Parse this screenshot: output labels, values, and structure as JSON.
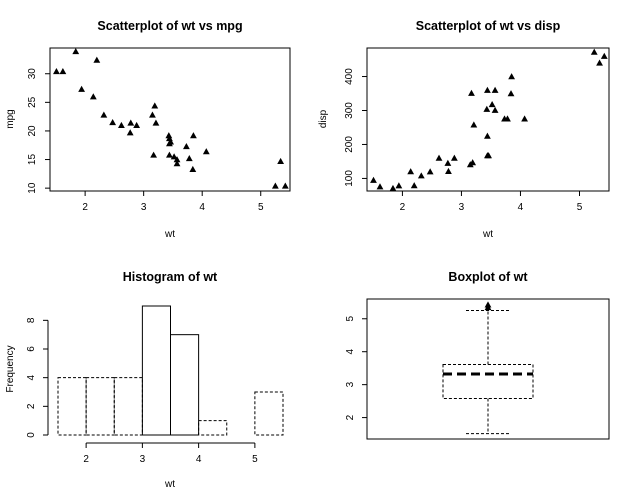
{
  "chart_data": [
    {
      "type": "scatter",
      "title": "Scatterplot of wt vs mpg",
      "xlabel": "wt",
      "ylabel": "mpg",
      "xlim": [
        1.4,
        5.5
      ],
      "ylim": [
        9.5,
        34.5
      ],
      "xticks": [
        2,
        3,
        4,
        5
      ],
      "yticks": [
        10,
        15,
        20,
        25,
        30
      ],
      "marker": "filled-triangle",
      "points": [
        [
          1.51,
          30.4
        ],
        [
          1.62,
          30.4
        ],
        [
          1.84,
          33.9
        ],
        [
          1.94,
          27.3
        ],
        [
          2.14,
          26.0
        ],
        [
          2.2,
          32.4
        ],
        [
          2.32,
          22.8
        ],
        [
          2.47,
          21.5
        ],
        [
          2.62,
          21.0
        ],
        [
          2.77,
          19.7
        ],
        [
          2.78,
          21.4
        ],
        [
          2.88,
          21.0
        ],
        [
          3.15,
          22.8
        ],
        [
          3.17,
          15.8
        ],
        [
          3.19,
          24.4
        ],
        [
          3.21,
          21.4
        ],
        [
          3.43,
          19.2
        ],
        [
          3.44,
          18.7
        ],
        [
          3.44,
          17.8
        ],
        [
          3.44,
          15.8
        ],
        [
          3.46,
          18.1
        ],
        [
          3.52,
          15.5
        ],
        [
          3.57,
          14.3
        ],
        [
          3.57,
          15.0
        ],
        [
          3.73,
          17.3
        ],
        [
          3.78,
          15.2
        ],
        [
          3.84,
          13.3
        ],
        [
          3.85,
          19.2
        ],
        [
          4.07,
          16.4
        ],
        [
          5.25,
          10.4
        ],
        [
          5.34,
          14.7
        ],
        [
          5.42,
          10.4
        ]
      ]
    },
    {
      "type": "scatter",
      "title": "Scatterplot of wt vs disp",
      "xlabel": "wt",
      "ylabel": "disp",
      "xlim": [
        1.4,
        5.5
      ],
      "ylim": [
        63,
        484
      ],
      "xticks": [
        2,
        3,
        4,
        5
      ],
      "yticks": [
        100,
        200,
        300,
        400
      ],
      "marker": "filled-triangle",
      "points": [
        [
          1.51,
          95.1
        ],
        [
          1.62,
          75.7
        ],
        [
          1.84,
          71.1
        ],
        [
          1.94,
          78.7
        ],
        [
          2.14,
          120.3
        ],
        [
          2.2,
          79.0
        ],
        [
          2.32,
          108.0
        ],
        [
          2.47,
          120.1
        ],
        [
          2.62,
          160.0
        ],
        [
          2.77,
          145.0
        ],
        [
          2.78,
          121.0
        ],
        [
          2.88,
          160.0
        ],
        [
          3.15,
          140.8
        ],
        [
          3.17,
          351.0
        ],
        [
          3.19,
          146.7
        ],
        [
          3.21,
          258.0
        ],
        [
          3.43,
          304.0
        ],
        [
          3.44,
          225.0
        ],
        [
          3.44,
          360.0
        ],
        [
          3.44,
          167.6
        ],
        [
          3.46,
          167.6
        ],
        [
          3.52,
          318.0
        ],
        [
          3.57,
          360.0
        ],
        [
          3.57,
          301.0
        ],
        [
          3.73,
          275.8
        ],
        [
          3.78,
          275.8
        ],
        [
          3.84,
          350.0
        ],
        [
          3.85,
          400.0
        ],
        [
          4.07,
          275.8
        ],
        [
          5.25,
          472.0
        ],
        [
          5.34,
          440.0
        ],
        [
          5.42,
          460.0
        ]
      ]
    },
    {
      "type": "histogram",
      "title": "Histogram of wt",
      "xlabel": "wt",
      "ylabel": "Frequency",
      "xticks": [
        2,
        3,
        4,
        5
      ],
      "yticks": [
        0,
        2,
        4,
        6,
        8
      ],
      "xlim": [
        1.5,
        5.5
      ],
      "ylim": [
        0,
        9
      ],
      "bins": [
        {
          "from": 1.5,
          "to": 2.0,
          "count": 4,
          "border": "dashed"
        },
        {
          "from": 2.0,
          "to": 2.5,
          "count": 4,
          "border": "dashed"
        },
        {
          "from": 2.5,
          "to": 3.0,
          "count": 4,
          "border": "dashed"
        },
        {
          "from": 3.0,
          "to": 3.5,
          "count": 9,
          "border": "solid"
        },
        {
          "from": 3.5,
          "to": 4.0,
          "count": 7,
          "border": "solid"
        },
        {
          "from": 4.0,
          "to": 4.5,
          "count": 1,
          "border": "dashed"
        },
        {
          "from": 4.5,
          "to": 5.0,
          "count": 0,
          "border": "dashed"
        },
        {
          "from": 5.0,
          "to": 5.5,
          "count": 3,
          "border": "dashed"
        }
      ]
    },
    {
      "type": "boxplot",
      "title": "Boxplot of wt",
      "yticks": [
        2,
        3,
        4,
        5
      ],
      "ylim": [
        1.35,
        5.6
      ],
      "stats": {
        "lower_whisker": 1.513,
        "q1": 2.581,
        "median": 3.325,
        "q3": 3.61,
        "upper_whisker": 5.25,
        "outliers": [
          5.345,
          5.424
        ]
      }
    }
  ]
}
